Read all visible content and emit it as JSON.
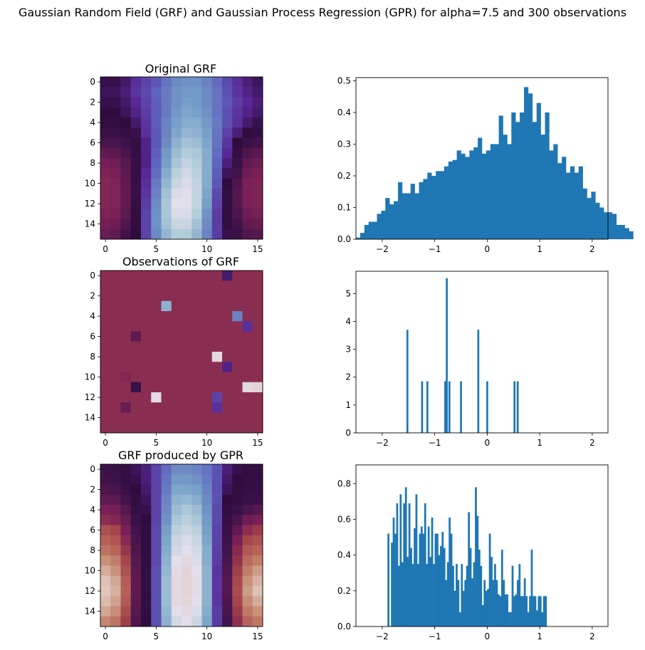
{
  "figure": {
    "suptitle": "Gaussian Random Field (GRF) and Gaussian Process Regression (GPR) for alpha=7.5 and 300 observations"
  },
  "chart_data": [
    {
      "type": "heatmap",
      "title": "Original GRF",
      "colormap": "twilight_shifted",
      "xticks": [
        0,
        5,
        10,
        15
      ],
      "yticks": [
        0,
        2,
        4,
        6,
        8,
        10,
        12,
        14
      ],
      "values": [
        [
          0.28,
          0.28,
          0.3,
          0.34,
          0.37,
          0.4,
          0.44,
          0.47,
          0.48,
          0.48,
          0.46,
          0.43,
          0.38,
          0.34,
          0.31,
          0.29
        ],
        [
          0.29,
          0.29,
          0.31,
          0.35,
          0.38,
          0.42,
          0.45,
          0.48,
          0.49,
          0.49,
          0.47,
          0.44,
          0.39,
          0.35,
          0.32,
          0.3
        ],
        [
          0.28,
          0.28,
          0.3,
          0.33,
          0.37,
          0.41,
          0.45,
          0.48,
          0.5,
          0.49,
          0.47,
          0.44,
          0.4,
          0.36,
          0.33,
          0.31
        ],
        [
          0.27,
          0.27,
          0.29,
          0.32,
          0.36,
          0.41,
          0.45,
          0.49,
          0.51,
          0.5,
          0.48,
          0.44,
          0.39,
          0.35,
          0.32,
          0.3
        ],
        [
          0.25,
          0.25,
          0.27,
          0.3,
          0.35,
          0.41,
          0.46,
          0.5,
          0.52,
          0.52,
          0.49,
          0.45,
          0.39,
          0.34,
          0.3,
          0.28
        ],
        [
          0.22,
          0.22,
          0.24,
          0.28,
          0.34,
          0.4,
          0.46,
          0.51,
          0.54,
          0.53,
          0.5,
          0.44,
          0.37,
          0.31,
          0.26,
          0.24
        ],
        [
          0.18,
          0.18,
          0.2,
          0.25,
          0.32,
          0.4,
          0.47,
          0.53,
          0.56,
          0.55,
          0.51,
          0.44,
          0.35,
          0.27,
          0.21,
          0.19
        ],
        [
          0.14,
          0.15,
          0.18,
          0.24,
          0.32,
          0.41,
          0.49,
          0.55,
          0.58,
          0.57,
          0.52,
          0.43,
          0.33,
          0.24,
          0.17,
          0.15
        ],
        [
          0.11,
          0.12,
          0.16,
          0.23,
          0.32,
          0.42,
          0.5,
          0.57,
          0.6,
          0.58,
          0.52,
          0.42,
          0.31,
          0.21,
          0.14,
          0.12
        ],
        [
          0.09,
          0.1,
          0.15,
          0.23,
          0.33,
          0.43,
          0.52,
          0.59,
          0.62,
          0.59,
          0.52,
          0.41,
          0.29,
          0.19,
          0.12,
          0.1
        ],
        [
          0.08,
          0.09,
          0.14,
          0.23,
          0.34,
          0.45,
          0.54,
          0.61,
          0.63,
          0.6,
          0.52,
          0.4,
          0.27,
          0.17,
          0.1,
          0.09
        ],
        [
          0.08,
          0.09,
          0.14,
          0.23,
          0.35,
          0.46,
          0.56,
          0.63,
          0.64,
          0.6,
          0.51,
          0.38,
          0.26,
          0.16,
          0.1,
          0.09
        ],
        [
          0.08,
          0.09,
          0.14,
          0.24,
          0.36,
          0.47,
          0.57,
          0.64,
          0.64,
          0.6,
          0.5,
          0.37,
          0.25,
          0.16,
          0.1,
          0.09
        ],
        [
          0.09,
          0.1,
          0.15,
          0.25,
          0.37,
          0.48,
          0.57,
          0.63,
          0.63,
          0.58,
          0.48,
          0.36,
          0.25,
          0.17,
          0.12,
          0.11
        ],
        [
          0.11,
          0.12,
          0.17,
          0.26,
          0.37,
          0.48,
          0.56,
          0.61,
          0.61,
          0.56,
          0.47,
          0.36,
          0.26,
          0.19,
          0.14,
          0.13
        ],
        [
          0.13,
          0.14,
          0.19,
          0.27,
          0.37,
          0.47,
          0.54,
          0.58,
          0.58,
          0.54,
          0.46,
          0.36,
          0.28,
          0.21,
          0.17,
          0.16
        ]
      ]
    },
    {
      "type": "bar",
      "xlim": [
        -2.5,
        2.3
      ],
      "ylim": [
        0,
        0.51
      ],
      "xticks": [
        -2,
        -1,
        0,
        1,
        2
      ],
      "yticks": [
        0.0,
        0.1,
        0.2,
        0.3,
        0.4,
        0.5
      ],
      "bin_start": -2.5,
      "bin_width": 0.08,
      "values": [
        0.005,
        0.02,
        0.045,
        0.055,
        0.055,
        0.08,
        0.09,
        0.13,
        0.11,
        0.12,
        0.18,
        0.145,
        0.145,
        0.175,
        0.145,
        0.18,
        0.19,
        0.21,
        0.2,
        0.215,
        0.215,
        0.23,
        0.245,
        0.25,
        0.28,
        0.27,
        0.26,
        0.28,
        0.29,
        0.32,
        0.27,
        0.28,
        0.3,
        0.3,
        0.39,
        0.33,
        0.3,
        0.4,
        0.37,
        0.4,
        0.48,
        0.46,
        0.37,
        0.43,
        0.33,
        0.4,
        0.28,
        0.3,
        0.24,
        0.26,
        0.21,
        0.23,
        0.21,
        0.23,
        0.16,
        0.13,
        0.15,
        0.115,
        0.1,
        0.085,
        0.085,
        0.08,
        0.045,
        0.045,
        0.035,
        0.025
      ]
    },
    {
      "type": "heatmap",
      "title": "Observations of GRF",
      "colormap": "twilight_shifted",
      "xticks": [
        0,
        5,
        10,
        15
      ],
      "yticks": [
        0,
        2,
        4,
        6,
        8,
        10,
        12,
        14
      ],
      "background_value": 0.06,
      "points": [
        {
          "row": 0,
          "col": 12,
          "value": 0.3
        },
        {
          "row": 3,
          "col": 6,
          "value": 0.53
        },
        {
          "row": 4,
          "col": 13,
          "value": 0.46
        },
        {
          "row": 5,
          "col": 14,
          "value": 0.34
        },
        {
          "row": 6,
          "col": 3,
          "value": 0.14
        },
        {
          "row": 8,
          "col": 11,
          "value": 0.66
        },
        {
          "row": 9,
          "col": 12,
          "value": 0.32
        },
        {
          "row": 10,
          "col": 2,
          "value": 0.08
        },
        {
          "row": 11,
          "col": 3,
          "value": 0.22
        },
        {
          "row": 11,
          "col": 14,
          "value": 0.66
        },
        {
          "row": 11,
          "col": 15,
          "value": 0.68
        },
        {
          "row": 12,
          "col": 5,
          "value": 0.65
        },
        {
          "row": 12,
          "col": 11,
          "value": 0.37
        },
        {
          "row": 13,
          "col": 2,
          "value": 0.13
        },
        {
          "row": 13,
          "col": 11,
          "value": 0.34
        }
      ]
    },
    {
      "type": "bar",
      "xlim": [
        -2.5,
        2.3
      ],
      "ylim": [
        0,
        5.8
      ],
      "xticks": [
        -2,
        -1,
        0,
        1,
        2
      ],
      "yticks": [
        0,
        1,
        2,
        3,
        4,
        5
      ],
      "bar_width": 0.037,
      "bars": [
        {
          "x": -1.52,
          "y": 3.7
        },
        {
          "x": -1.24,
          "y": 1.85
        },
        {
          "x": -1.14,
          "y": 1.85
        },
        {
          "x": -0.8,
          "y": 1.85
        },
        {
          "x": -0.77,
          "y": 5.55
        },
        {
          "x": -0.72,
          "y": 1.85
        },
        {
          "x": -0.5,
          "y": 1.85
        },
        {
          "x": -0.17,
          "y": 3.7
        },
        {
          "x": 0.0,
          "y": 1.85
        },
        {
          "x": 0.52,
          "y": 1.85
        },
        {
          "x": 0.58,
          "y": 1.85
        }
      ]
    },
    {
      "type": "heatmap",
      "title": "GRF produced by GPR",
      "colormap": "twilight_shifted",
      "xticks": [
        0,
        5,
        10,
        15
      ],
      "yticks": [
        0,
        2,
        4,
        6,
        8,
        10,
        12,
        14
      ],
      "values": [
        [
          0.2,
          0.21,
          0.25,
          0.29,
          0.31,
          0.37,
          0.43,
          0.47,
          0.47,
          0.46,
          0.44,
          0.39,
          0.31,
          0.28,
          0.25,
          0.24
        ],
        [
          0.19,
          0.2,
          0.24,
          0.28,
          0.31,
          0.37,
          0.44,
          0.49,
          0.49,
          0.48,
          0.45,
          0.39,
          0.3,
          0.27,
          0.25,
          0.24
        ],
        [
          0.17,
          0.18,
          0.22,
          0.27,
          0.3,
          0.37,
          0.45,
          0.51,
          0.51,
          0.5,
          0.46,
          0.39,
          0.29,
          0.26,
          0.24,
          0.23
        ],
        [
          0.14,
          0.15,
          0.19,
          0.25,
          0.29,
          0.37,
          0.46,
          0.53,
          0.54,
          0.52,
          0.47,
          0.39,
          0.27,
          0.25,
          0.22,
          0.21
        ],
        [
          0.1,
          0.11,
          0.16,
          0.23,
          0.28,
          0.37,
          0.47,
          0.55,
          0.57,
          0.55,
          0.48,
          0.38,
          0.25,
          0.22,
          0.18,
          0.16
        ],
        [
          0.06,
          0.08,
          0.13,
          0.21,
          0.27,
          0.37,
          0.48,
          0.57,
          0.59,
          0.57,
          0.49,
          0.38,
          0.23,
          0.18,
          0.12,
          0.1
        ],
        [
          0.96,
          0.99,
          0.1,
          0.19,
          0.26,
          0.38,
          0.5,
          0.59,
          0.61,
          0.59,
          0.5,
          0.37,
          0.21,
          0.14,
          0.06,
          0.02
        ],
        [
          0.92,
          0.95,
          0.07,
          0.18,
          0.26,
          0.38,
          0.51,
          0.61,
          0.63,
          0.61,
          0.51,
          0.37,
          0.2,
          0.1,
          0.99,
          0.96
        ],
        [
          0.88,
          0.91,
          0.03,
          0.17,
          0.26,
          0.38,
          0.52,
          0.62,
          0.64,
          0.62,
          0.52,
          0.36,
          0.19,
          0.07,
          0.94,
          0.91
        ],
        [
          0.82,
          0.86,
          0.99,
          0.16,
          0.25,
          0.38,
          0.53,
          0.64,
          0.66,
          0.63,
          0.52,
          0.36,
          0.18,
          0.04,
          0.9,
          0.86
        ],
        [
          0.77,
          0.82,
          0.96,
          0.15,
          0.25,
          0.39,
          0.54,
          0.65,
          0.67,
          0.64,
          0.53,
          0.35,
          0.17,
          0.01,
          0.86,
          0.8
        ],
        [
          0.73,
          0.78,
          0.93,
          0.14,
          0.25,
          0.39,
          0.55,
          0.66,
          0.68,
          0.65,
          0.53,
          0.35,
          0.16,
          0.98,
          0.82,
          0.76
        ],
        [
          0.72,
          0.76,
          0.92,
          0.14,
          0.25,
          0.39,
          0.55,
          0.66,
          0.68,
          0.65,
          0.53,
          0.35,
          0.16,
          0.97,
          0.8,
          0.73
        ],
        [
          0.74,
          0.79,
          0.94,
          0.15,
          0.25,
          0.39,
          0.55,
          0.66,
          0.67,
          0.64,
          0.53,
          0.35,
          0.17,
          0.99,
          0.83,
          0.77
        ],
        [
          0.78,
          0.83,
          0.97,
          0.16,
          0.26,
          0.39,
          0.54,
          0.64,
          0.66,
          0.63,
          0.52,
          0.36,
          0.18,
          0.02,
          0.87,
          0.82
        ],
        [
          0.84,
          0.88,
          0.01,
          0.17,
          0.27,
          0.39,
          0.53,
          0.62,
          0.64,
          0.61,
          0.51,
          0.36,
          0.19,
          0.05,
          0.91,
          0.87
        ]
      ]
    },
    {
      "type": "bar",
      "xlim": [
        -2.5,
        2.3
      ],
      "ylim": [
        0,
        0.905
      ],
      "xticks": [
        -2,
        -1,
        0,
        1,
        2
      ],
      "yticks": [
        0.0,
        0.2,
        0.4,
        0.6,
        0.8
      ],
      "bin_start": -1.9,
      "bin_width": 0.0333,
      "values": [
        0.52,
        0.0,
        0.47,
        0.61,
        0.52,
        0.69,
        0.34,
        0.74,
        0.36,
        0.69,
        0.78,
        0.39,
        0.69,
        0.44,
        0.35,
        0.55,
        0.74,
        0.35,
        0.52,
        0.56,
        0.52,
        0.69,
        0.35,
        0.56,
        0.39,
        0.61,
        0.35,
        0.52,
        0.52,
        0.4,
        0.45,
        0.53,
        0.44,
        0.26,
        0.36,
        0.61,
        0.52,
        0.34,
        0.2,
        0.35,
        0.26,
        0.08,
        0.35,
        0.2,
        0.26,
        0.34,
        0.64,
        0.44,
        0.27,
        0.36,
        0.78,
        0.62,
        0.43,
        0.34,
        0.12,
        0.26,
        0.2,
        0.21,
        0.52,
        0.39,
        0.26,
        0.35,
        0.26,
        0.18,
        0.17,
        0.43,
        0.26,
        0.18,
        0.18,
        0.08,
        0.08,
        0.34,
        0.17,
        0.18,
        0.26,
        0.35,
        0.17,
        0.17,
        0.27,
        0.17,
        0.08,
        0.17,
        0.43,
        0.17,
        0.17,
        0.09,
        0.17,
        0.17,
        0.08,
        0.17,
        0.17
      ]
    }
  ]
}
